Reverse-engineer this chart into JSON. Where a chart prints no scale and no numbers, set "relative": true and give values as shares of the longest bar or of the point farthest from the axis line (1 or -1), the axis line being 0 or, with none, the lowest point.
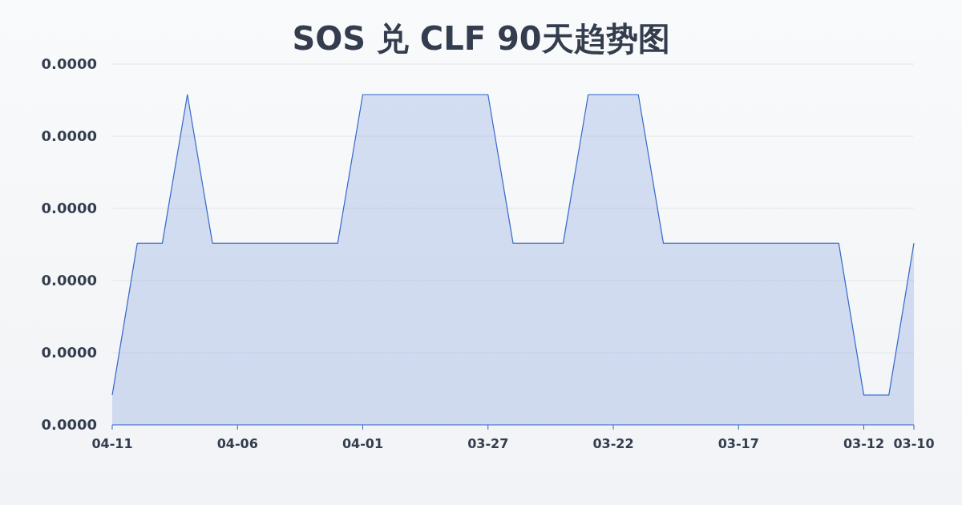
{
  "chart_data": {
    "type": "area",
    "title": "SOS 兑 CLF 90天趋势图",
    "categories": [
      "04-11",
      null,
      null,
      null,
      null,
      "04-06",
      null,
      null,
      null,
      null,
      "04-01",
      null,
      null,
      null,
      null,
      "03-27",
      null,
      null,
      null,
      null,
      "03-22",
      null,
      null,
      null,
      null,
      "03-17",
      null,
      null,
      null,
      null,
      "03-12",
      null,
      "03-10"
    ],
    "values": [
      0.09,
      0.55,
      0.55,
      1,
      0.55,
      0.55,
      0.55,
      0.55,
      0.55,
      0.55,
      1,
      1,
      1,
      1,
      1,
      1,
      0.55,
      0.55,
      0.55,
      1,
      1,
      1,
      0.55,
      0.55,
      0.55,
      0.55,
      0.55,
      0.55,
      0.55,
      0.55,
      0.09,
      0.09,
      0.55
    ],
    "relative": true,
    "color": "#3366cc",
    "grid": "y",
    "annotations": [
      "0.0000",
      "0.0000",
      "0.0000",
      "0.0000",
      "0.0000",
      "0.0000"
    ]
  }
}
